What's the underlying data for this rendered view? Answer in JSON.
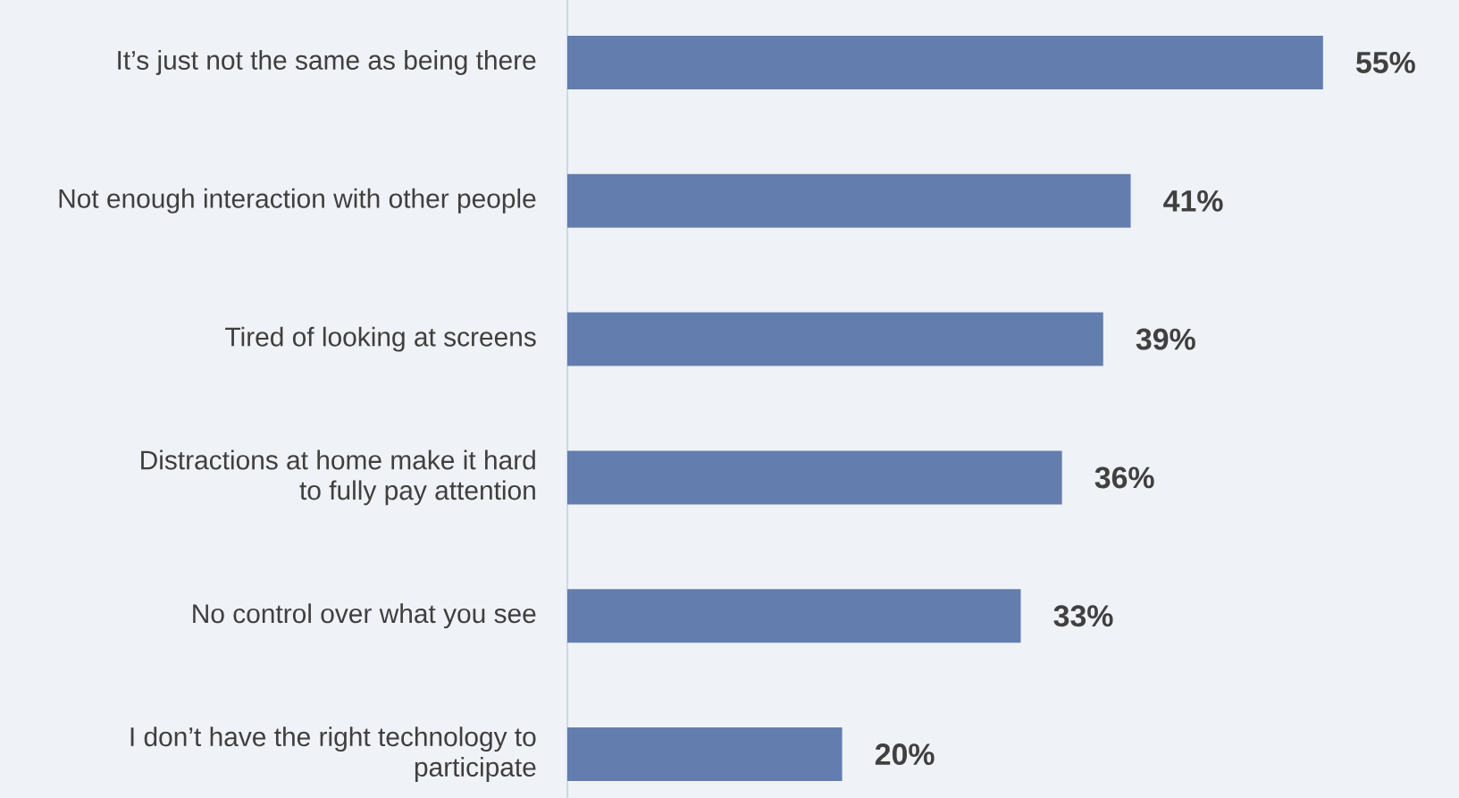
{
  "chart_data": {
    "type": "bar",
    "orientation": "horizontal",
    "categories": [
      "It’s just not the same as being there",
      "Not enough interaction with other people",
      "Tired of looking at screens",
      "Distractions at home make it hard to fully pay attention",
      "No control over what you see",
      "I don’t have the right technology to participate"
    ],
    "values": [
      55,
      41,
      39,
      36,
      33,
      20
    ],
    "value_labels": [
      "55%",
      "41%",
      "39%",
      "36%",
      "33%",
      "20%"
    ],
    "color": "#637dae"
  }
}
